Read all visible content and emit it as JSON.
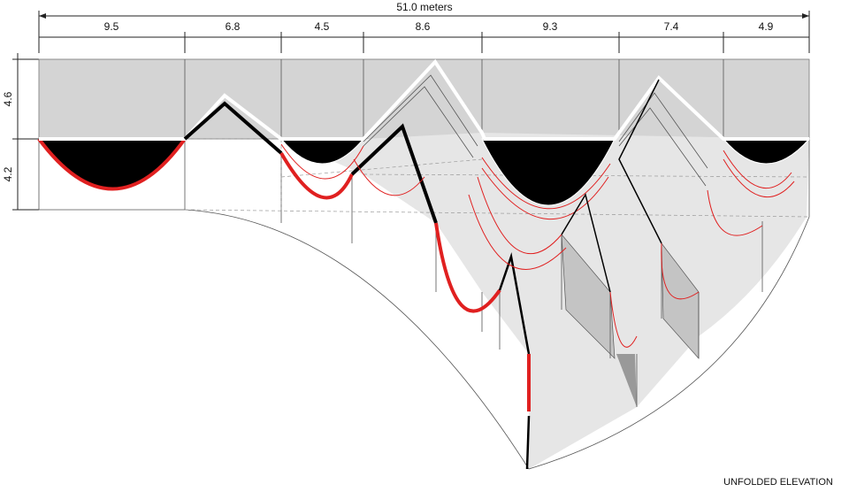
{
  "dimensions": {
    "total": "51.0 meters",
    "segments": [
      "9.5",
      "6.8",
      "4.5",
      "8.6",
      "9.3",
      "7.4",
      "4.9"
    ]
  },
  "heights": [
    "4.6",
    "4.2"
  ],
  "caption": "UNFOLDED ELEVATION"
}
